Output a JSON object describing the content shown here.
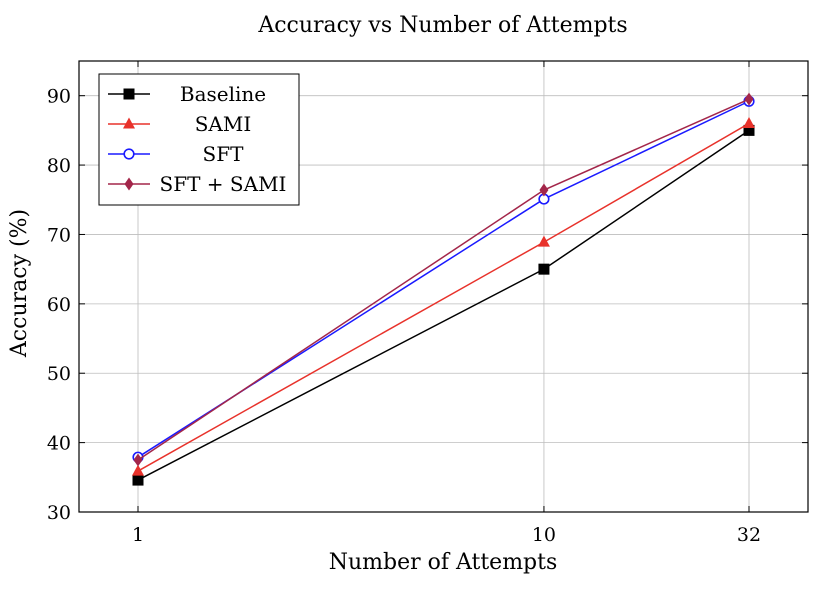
{
  "chart_data": {
    "type": "line",
    "title": "Accuracy vs Number of Attempts",
    "xlabel": "Number of Attempts",
    "ylabel": "Accuracy (%)",
    "x_scale": "log",
    "x": [
      1,
      10,
      32
    ],
    "x_tick_labels": [
      "1",
      "10",
      "32"
    ],
    "ylim": [
      30,
      95
    ],
    "y_ticks": [
      30,
      40,
      50,
      60,
      70,
      80,
      90
    ],
    "grid": true,
    "legend_position": "top-left",
    "series": [
      {
        "name": "Baseline",
        "values": [
          34.6,
          65.0,
          85.0
        ],
        "color": "#000000",
        "marker": "square"
      },
      {
        "name": "SAMI",
        "values": [
          35.9,
          68.9,
          86.0
        ],
        "color": "#e8322b",
        "marker": "triangle"
      },
      {
        "name": "SFT",
        "values": [
          37.9,
          75.1,
          89.2
        ],
        "color": "#1a1aff",
        "marker": "circle-open"
      },
      {
        "name": "SFT + SAMI",
        "values": [
          37.5,
          76.4,
          89.5
        ],
        "color": "#a3264a",
        "marker": "diamond"
      }
    ]
  }
}
